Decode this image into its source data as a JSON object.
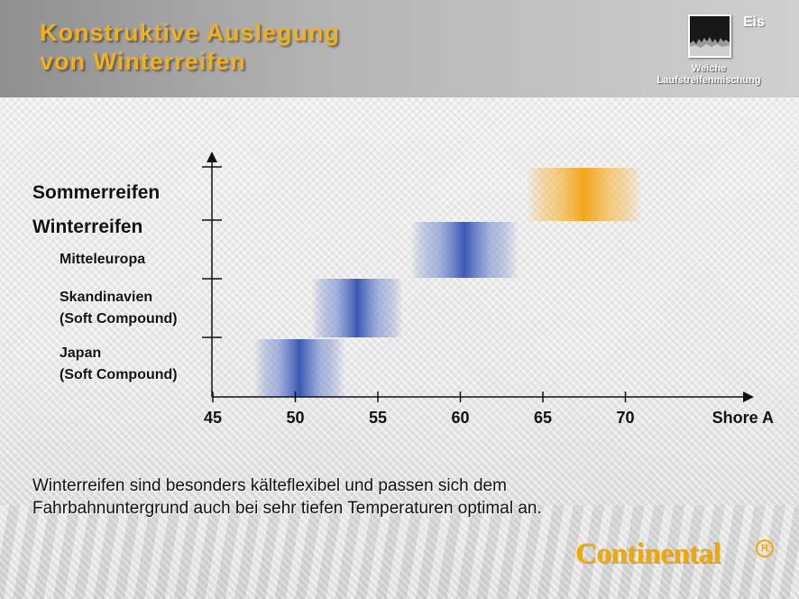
{
  "header": {
    "title_line1": "Konstruktive Auslegung",
    "title_line2": "von Winterreifen",
    "icon_label": "Eis",
    "icon_caption_line1": "Weiche",
    "icon_caption_line2": "Laufstreifenmischung"
  },
  "rows": {
    "sommer": "Sommerreifen",
    "winter": "Winterreifen",
    "mitteleuropa": "Mitteleuropa",
    "skandinavien_line1": "Skandinavien",
    "skandinavien_line2": "(Soft Compound)",
    "japan_line1": "Japan",
    "japan_line2": "(Soft Compound)"
  },
  "chart_data": {
    "type": "bar",
    "orientation": "horizontal-range",
    "xlabel": "Shore A",
    "x_ticks": [
      45,
      50,
      55,
      60,
      65,
      70
    ],
    "xlim": [
      45,
      77
    ],
    "categories": [
      "Japan (Soft Compound)",
      "Skandinavien (Soft Compound)",
      "Mitteleuropa",
      "Sommerreifen"
    ],
    "ranges": [
      {
        "category": "Japan (Soft Compound)",
        "from": 47.5,
        "to": 53,
        "center": 50,
        "color": "#3a58b4"
      },
      {
        "category": "Skandinavien (Soft Compound)",
        "from": 51,
        "to": 56.5,
        "center": 54,
        "color": "#3a58b4"
      },
      {
        "category": "Mitteleuropa",
        "from": 57,
        "to": 63.5,
        "center": 60,
        "color": "#3a58b4"
      },
      {
        "category": "Sommerreifen",
        "from": 64,
        "to": 71,
        "center": 67.5,
        "color": "#f2a41a"
      }
    ],
    "grid": false
  },
  "caption": {
    "line1": "Winterreifen sind besonders kälteflexibel und passen sich dem",
    "line2": "Fahrbahnuntergrund auch bei sehr tiefen Temperaturen optimal an."
  },
  "logo": {
    "text": "Continental",
    "mark": "R"
  },
  "colors": {
    "title": "#f2b01e",
    "winter_bar": "#3a58b4",
    "summer_bar": "#f2a41a",
    "brand": "#f2a800"
  }
}
